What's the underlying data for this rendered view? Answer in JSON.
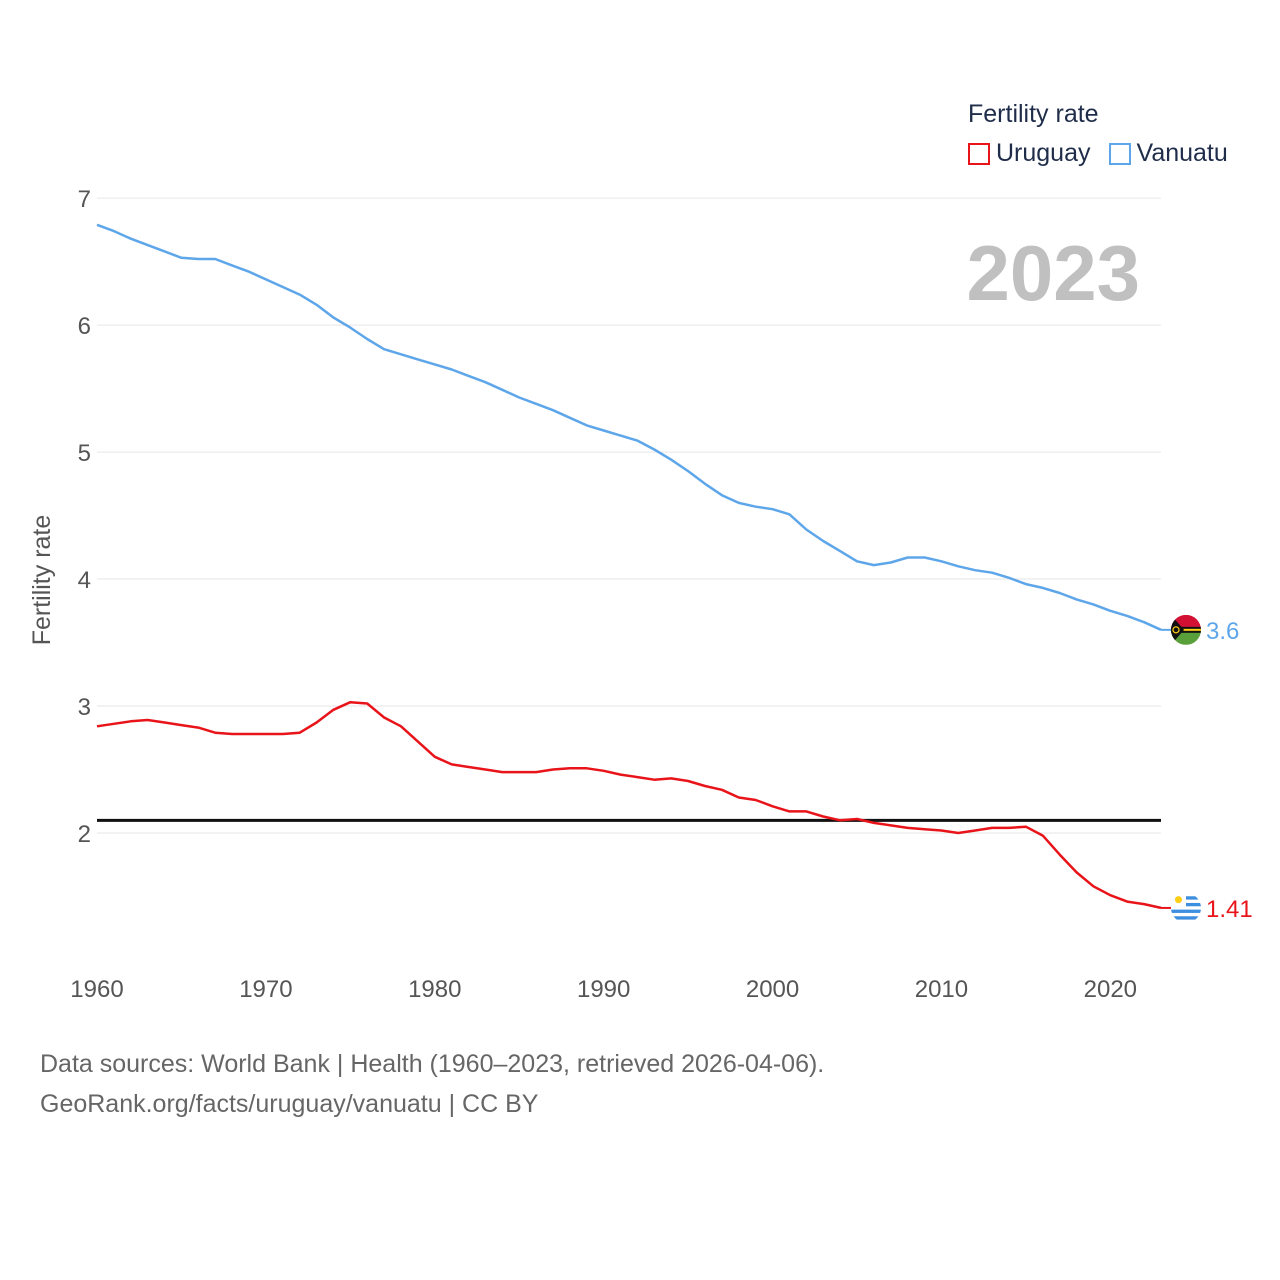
{
  "legend": {
    "title": "Fertility rate"
  },
  "footer": {
    "line1": "Data sources: World Bank | Health (1960–2023, retrieved 2026-04-06).",
    "line2": "GeoRank.org/facts/uruguay/vanuatu | CC BY"
  },
  "chart_data": {
    "type": "line",
    "title": "",
    "xlabel": "",
    "ylabel": "Fertility rate",
    "current_year": "2023",
    "xlim": [
      1960,
      2023
    ],
    "ylim": [
      1,
      7.3
    ],
    "xticks": [
      1960,
      1970,
      1980,
      1990,
      2000,
      2010,
      2020
    ],
    "yticks": [
      2,
      3,
      4,
      5,
      6,
      7
    ],
    "reference_line": {
      "y": 2.1,
      "color": "#111111"
    },
    "series": [
      {
        "name": "Uruguay",
        "color": "#e8141a",
        "end_label": "1.41",
        "x": [
          1960,
          1961,
          1962,
          1963,
          1964,
          1965,
          1966,
          1967,
          1968,
          1969,
          1970,
          1971,
          1972,
          1973,
          1974,
          1975,
          1976,
          1977,
          1978,
          1979,
          1980,
          1981,
          1982,
          1983,
          1984,
          1985,
          1986,
          1987,
          1988,
          1989,
          1990,
          1991,
          1992,
          1993,
          1994,
          1995,
          1996,
          1997,
          1998,
          1999,
          2000,
          2001,
          2002,
          2003,
          2004,
          2005,
          2006,
          2007,
          2008,
          2009,
          2010,
          2011,
          2012,
          2013,
          2014,
          2015,
          2016,
          2017,
          2018,
          2019,
          2020,
          2021,
          2022,
          2023
        ],
        "values": [
          2.84,
          2.86,
          2.88,
          2.89,
          2.87,
          2.85,
          2.83,
          2.79,
          2.78,
          2.78,
          2.78,
          2.78,
          2.79,
          2.87,
          2.97,
          3.03,
          3.02,
          2.91,
          2.84,
          2.72,
          2.6,
          2.54,
          2.52,
          2.5,
          2.48,
          2.48,
          2.48,
          2.5,
          2.51,
          2.51,
          2.49,
          2.46,
          2.44,
          2.42,
          2.43,
          2.41,
          2.37,
          2.34,
          2.28,
          2.26,
          2.21,
          2.17,
          2.17,
          2.13,
          2.1,
          2.11,
          2.08,
          2.06,
          2.04,
          2.03,
          2.02,
          2.0,
          2.02,
          2.04,
          2.04,
          2.05,
          1.98,
          1.83,
          1.69,
          1.58,
          1.51,
          1.46,
          1.44,
          1.41
        ]
      },
      {
        "name": "Vanuatu",
        "color": "#5ea6ea",
        "end_label": "3.6",
        "x": [
          1960,
          1961,
          1962,
          1963,
          1964,
          1965,
          1966,
          1967,
          1968,
          1969,
          1970,
          1971,
          1972,
          1973,
          1974,
          1975,
          1976,
          1977,
          1978,
          1979,
          1980,
          1981,
          1982,
          1983,
          1984,
          1985,
          1986,
          1987,
          1988,
          1989,
          1990,
          1991,
          1992,
          1993,
          1994,
          1995,
          1996,
          1997,
          1998,
          1999,
          2000,
          2001,
          2002,
          2003,
          2004,
          2005,
          2006,
          2007,
          2008,
          2009,
          2010,
          2011,
          2012,
          2013,
          2014,
          2015,
          2016,
          2017,
          2018,
          2019,
          2020,
          2021,
          2022,
          2023
        ],
        "values": [
          6.79,
          6.74,
          6.68,
          6.63,
          6.58,
          6.53,
          6.52,
          6.52,
          6.47,
          6.42,
          6.36,
          6.3,
          6.24,
          6.16,
          6.06,
          5.98,
          5.89,
          5.81,
          5.77,
          5.73,
          5.69,
          5.65,
          5.6,
          5.55,
          5.49,
          5.43,
          5.38,
          5.33,
          5.27,
          5.21,
          5.17,
          5.13,
          5.09,
          5.02,
          4.94,
          4.85,
          4.75,
          4.66,
          4.6,
          4.57,
          4.55,
          4.51,
          4.39,
          4.3,
          4.22,
          4.14,
          4.11,
          4.13,
          4.17,
          4.17,
          4.14,
          4.1,
          4.07,
          4.05,
          4.01,
          3.96,
          3.93,
          3.89,
          3.84,
          3.8,
          3.75,
          3.71,
          3.66,
          3.6
        ]
      }
    ]
  },
  "colors": {
    "grid": "#e6e6e6",
    "axis_text": "#555555",
    "uruguay_flag_blue": "#3e8ee0",
    "vanuatu_red": "#d21034",
    "vanuatu_green": "#5aa03a",
    "vanuatu_yellow": "#fdce12"
  }
}
